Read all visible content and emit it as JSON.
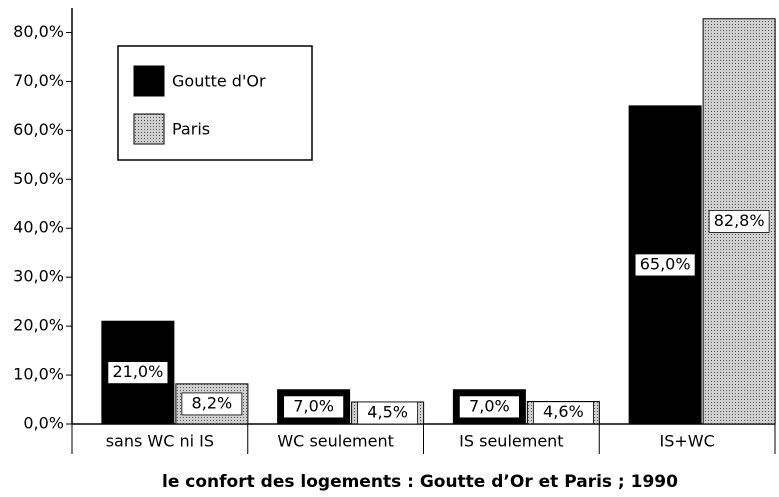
{
  "chart_data": {
    "type": "bar",
    "title": "le confort des logements : Goutte d’Or et Paris ; 1990",
    "categories": [
      "sans WC ni IS",
      "WC seulement",
      "IS seulement",
      "IS+WC"
    ],
    "series": [
      {
        "name": "Goutte d'Or",
        "color": "#000000",
        "values": [
          21,
          7,
          7,
          65
        ],
        "value_labels": [
          "21,0%",
          "7,0%",
          "7,0%",
          "65,0%"
        ]
      },
      {
        "name": "Paris",
        "color": "#d0d0d0",
        "values": [
          8.2,
          4.5,
          4.6,
          82.8
        ],
        "value_labels": [
          "8,2%",
          "4,5%",
          "4,6%",
          "82,8%"
        ]
      }
    ],
    "ylim": [
      0,
      85
    ],
    "yticks": [
      {
        "value": 0,
        "label": "0,0%"
      },
      {
        "value": 10,
        "label": "10,0%"
      },
      {
        "value": 20,
        "label": "20,0%"
      },
      {
        "value": 30,
        "label": "30,0%"
      },
      {
        "value": 40,
        "label": "40,0%"
      },
      {
        "value": 50,
        "label": "50,0%"
      },
      {
        "value": 60,
        "label": "60,0%"
      },
      {
        "value": 70,
        "label": "70,0%"
      },
      {
        "value": 80,
        "label": "80,0%"
      }
    ],
    "legend": "upper left"
  }
}
